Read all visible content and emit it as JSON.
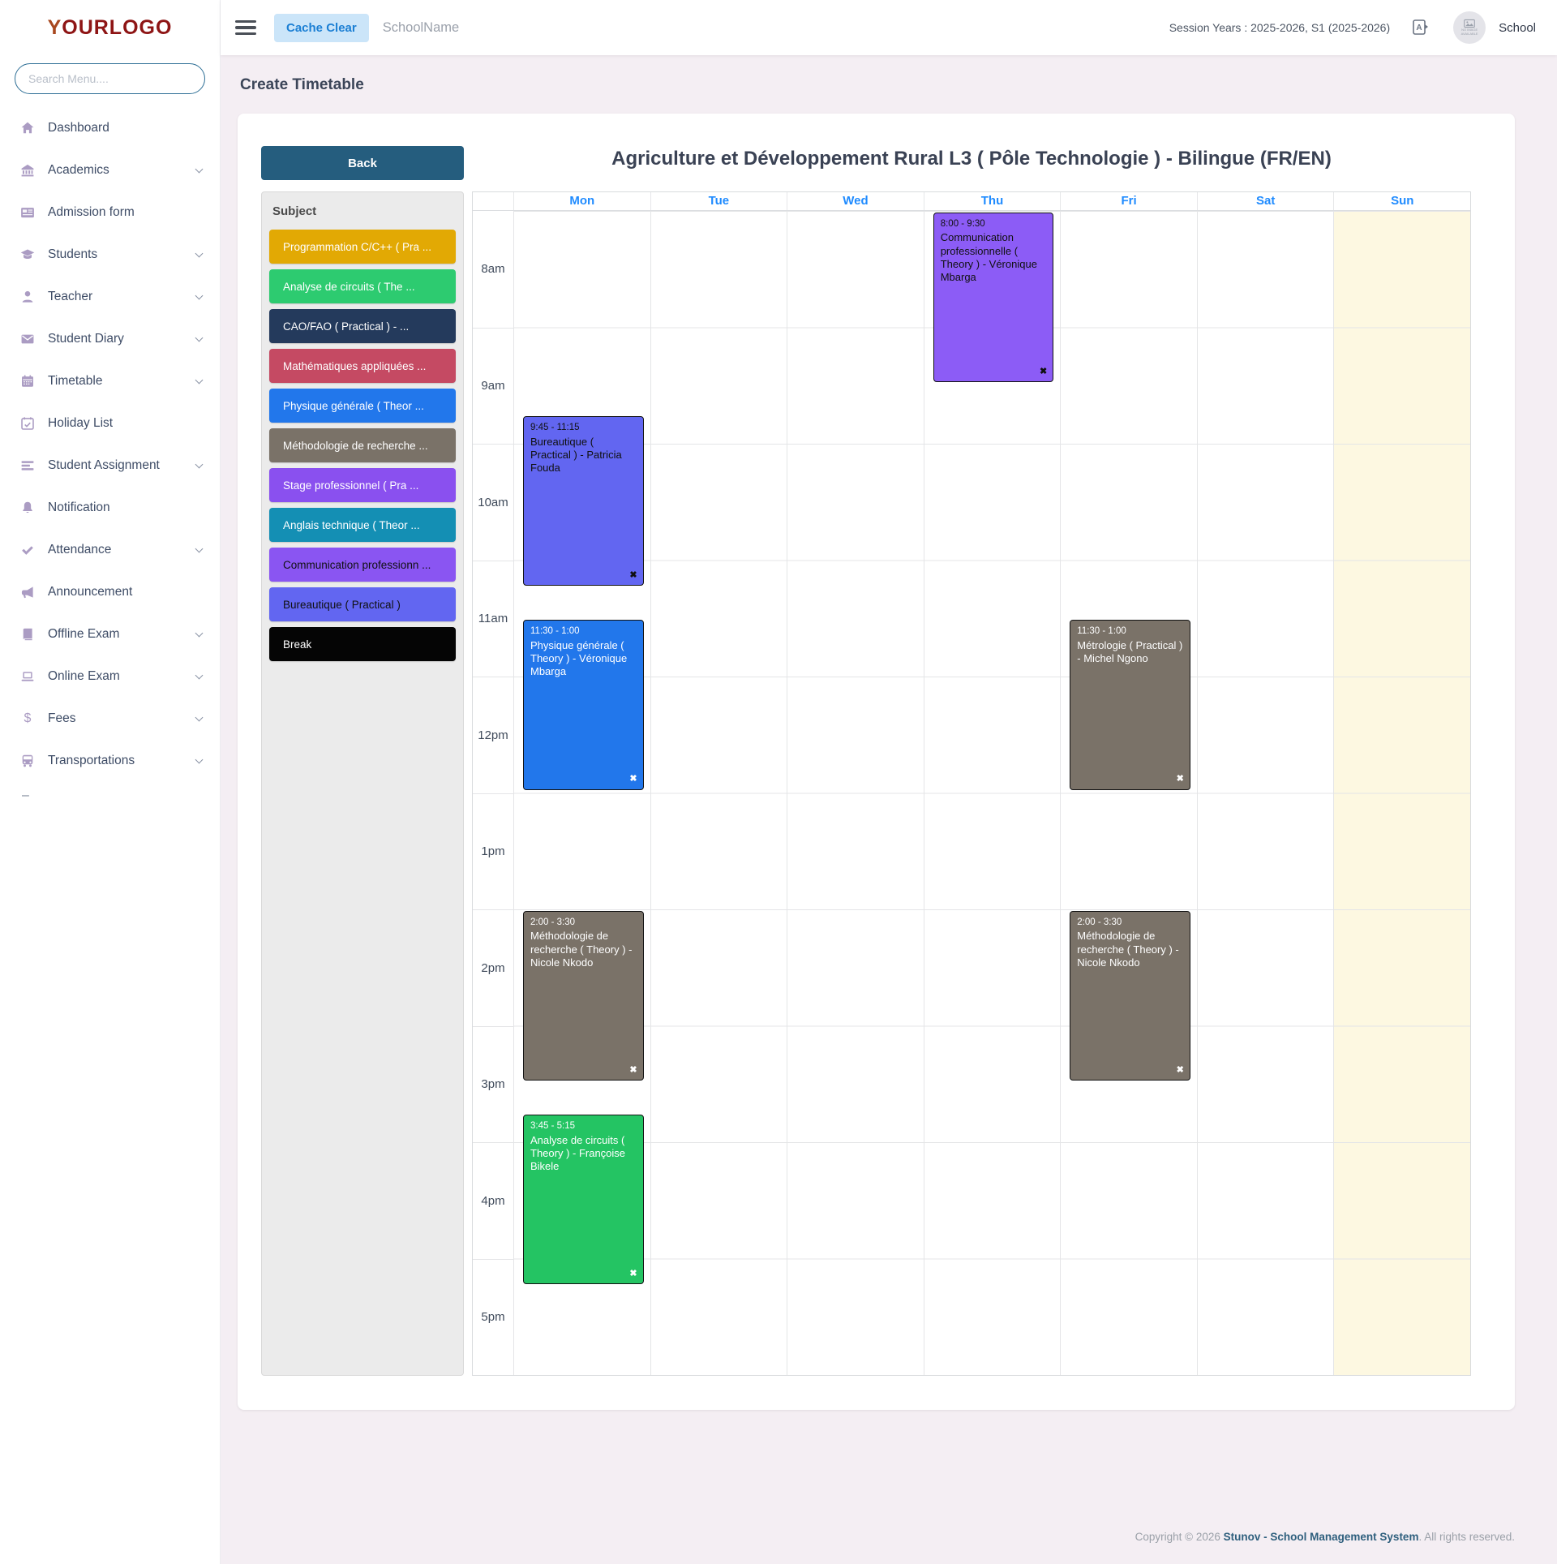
{
  "sidebar": {
    "logo_text": "OURLOGO",
    "logo_prefix": "Y",
    "search_placeholder": "Search Menu....",
    "collapse_dash": "–",
    "items": [
      {
        "id": "dashboard",
        "label": "Dashboard",
        "icon": "home-icon",
        "expandable": false
      },
      {
        "id": "academics",
        "label": "Academics",
        "icon": "bank-icon",
        "expandable": true
      },
      {
        "id": "admission-form",
        "label": "Admission form",
        "icon": "form-icon",
        "expandable": false
      },
      {
        "id": "students",
        "label": "Students",
        "icon": "graduation-cap-icon",
        "expandable": true
      },
      {
        "id": "teacher",
        "label": "Teacher",
        "icon": "person-icon",
        "expandable": true
      },
      {
        "id": "student-diary",
        "label": "Student Diary",
        "icon": "envelope-icon",
        "expandable": true
      },
      {
        "id": "timetable",
        "label": "Timetable",
        "icon": "calendar-icon",
        "expandable": true
      },
      {
        "id": "holiday-list",
        "label": "Holiday List",
        "icon": "calendar-check-icon",
        "expandable": false
      },
      {
        "id": "student-assignment",
        "label": "Student Assignment",
        "icon": "list-icon",
        "expandable": true
      },
      {
        "id": "notification",
        "label": "Notification",
        "icon": "bell-icon",
        "expandable": false
      },
      {
        "id": "attendance",
        "label": "Attendance",
        "icon": "check-icon",
        "expandable": true
      },
      {
        "id": "announcement",
        "label": "Announcement",
        "icon": "megaphone-icon",
        "expandable": false
      },
      {
        "id": "offline-exam",
        "label": "Offline Exam",
        "icon": "book-icon",
        "expandable": true
      },
      {
        "id": "online-exam",
        "label": "Online Exam",
        "icon": "laptop-icon",
        "expandable": true
      },
      {
        "id": "fees",
        "label": "Fees",
        "icon": "dollar-icon",
        "expandable": true
      },
      {
        "id": "transportations",
        "label": "Transportations",
        "icon": "bus-icon",
        "expandable": true
      }
    ]
  },
  "header": {
    "cache_clear_label": "Cache Clear",
    "school_name": "SchoolName",
    "session_text": "Session Years : 2025-2026, S1 (2025-2026)",
    "avatar_text": "NO IMAGE AVAILABLE",
    "profile_label": "School"
  },
  "page": {
    "title": "Create Timetable"
  },
  "card": {
    "back_label": "Back",
    "timetable_title": "Agriculture et Développement Rural L3 ( Pôle Technologie ) - Bilingue (FR/EN)"
  },
  "subjects": {
    "header": "Subject",
    "items": [
      {
        "label": "Programmation C/C++ ( Pra ...",
        "color": "#e2a904",
        "text_color": "#ffffff"
      },
      {
        "label": "Analyse de circuits ( The ...",
        "color": "#2dcb70",
        "text_color": "#ffffff"
      },
      {
        "label": "CAO/FAO ( Practical ) - ...",
        "color": "#243a5c",
        "text_color": "#ffffff"
      },
      {
        "label": "Mathématiques appliquées ...",
        "color": "#c54a63",
        "text_color": "#ffffff"
      },
      {
        "label": "Physique générale ( Theor ...",
        "color": "#2277eb",
        "text_color": "#ffffff"
      },
      {
        "label": "Méthodologie de recherche ...",
        "color": "#7a7268",
        "text_color": "#ffffff"
      },
      {
        "label": "Stage professionnel ( Pra ...",
        "color": "#8a50ef",
        "text_color": "#ffffff"
      },
      {
        "label": "Anglais technique ( Theor ...",
        "color": "#148fb4",
        "text_color": "#ffffff"
      },
      {
        "label": "Communication professionn ...",
        "color": "#8a55f2",
        "text_color": "#101010"
      },
      {
        "label": "Bureautique ( Practical )",
        "color": "#6266f1",
        "text_color": "#101010"
      },
      {
        "label": "Break",
        "color": "#050505",
        "text_color": "#ffffff"
      }
    ]
  },
  "calendar": {
    "days": [
      "Mon",
      "Tue",
      "Wed",
      "Thu",
      "Fri",
      "Sat",
      "Sun"
    ],
    "sunday_index": 6,
    "sunday_bg": "#fdf8e1",
    "time_labels": [
      "8am",
      "9am",
      "10am",
      "11am",
      "12pm",
      "1pm",
      "2pm",
      "3pm",
      "4pm",
      "5pm"
    ],
    "events": [
      {
        "day": "Thu",
        "day_index": 3,
        "time": "8:00 - 9:30",
        "start_min": 0,
        "end_min": 90,
        "title": "Communication professionnelle ( Theory ) - Véronique Mbarga",
        "color": "#8c5cf6",
        "text_color": "#101010"
      },
      {
        "day": "Mon",
        "day_index": 0,
        "time": "9:45 - 11:15",
        "start_min": 105,
        "end_min": 195,
        "title": "Bureautique ( Practical ) - Patricia Fouda",
        "color": "#6266f1",
        "text_color": "#101010"
      },
      {
        "day": "Mon",
        "day_index": 0,
        "time": "11:30 - 1:00",
        "start_min": 210,
        "end_min": 300,
        "title": "Physique générale ( Theory ) - Véronique Mbarga",
        "color": "#2277eb",
        "text_color": "#ffffff"
      },
      {
        "day": "Fri",
        "day_index": 4,
        "time": "11:30 - 1:00",
        "start_min": 210,
        "end_min": 300,
        "title": "Métrologie ( Practical ) - Michel Ngono",
        "color": "#7a7268",
        "text_color": "#ffffff"
      },
      {
        "day": "Mon",
        "day_index": 0,
        "time": "2:00 - 3:30",
        "start_min": 360,
        "end_min": 450,
        "title": "Méthodologie de recherche ( Theory ) - Nicole Nkodo",
        "color": "#7a7268",
        "text_color": "#ffffff"
      },
      {
        "day": "Fri",
        "day_index": 4,
        "time": "2:00 - 3:30",
        "start_min": 360,
        "end_min": 450,
        "title": "Méthodologie de recherche ( Theory ) - Nicole Nkodo",
        "color": "#7a7268",
        "text_color": "#ffffff"
      },
      {
        "day": "Mon",
        "day_index": 0,
        "time": "3:45 - 5:15",
        "start_min": 465,
        "end_min": 555,
        "title": "Analyse de circuits ( Theory ) - Françoise Bikele",
        "color": "#24c463",
        "text_color": "#ffffff"
      }
    ]
  },
  "footer": {
    "copyright_prefix": "Copyright © 2026 ",
    "brand": "Stunov - School Management System",
    "suffix": ". All rights reserved."
  }
}
